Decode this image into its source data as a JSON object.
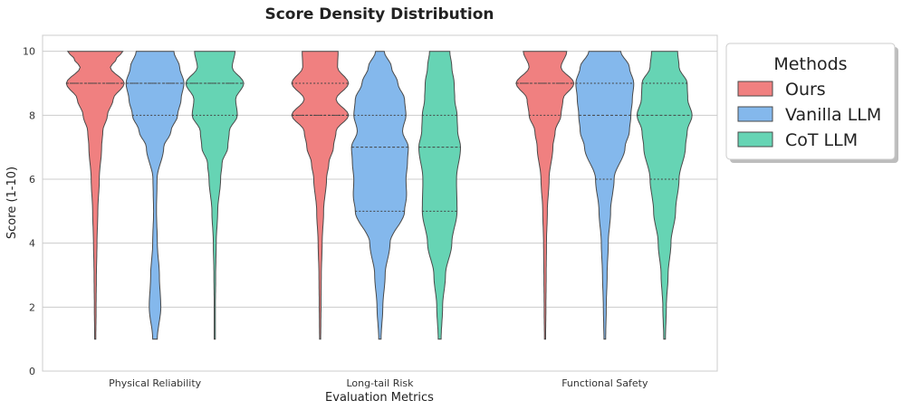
{
  "chart_data": {
    "type": "violin",
    "title": "Score Density Distribution",
    "xlabel": "Evaluation Metrics",
    "ylabel": "Score (1-10)",
    "ylim": [
      0,
      10.5
    ],
    "yticks": [
      0,
      2,
      4,
      6,
      8,
      10
    ],
    "categories": [
      "Physical Reliability",
      "Long-tail Risk",
      "Functional Safety"
    ],
    "legend": {
      "title": "Methods",
      "position": "outside-top-right"
    },
    "series": [
      {
        "name": "Ours",
        "color": "#f08080",
        "violins": [
          {
            "range": [
              1,
              10
            ],
            "quartiles": [
              9,
              9,
              9
            ],
            "profile": [
              [
                1,
                0.02
              ],
              [
                2,
                0.03
              ],
              [
                3,
                0.04
              ],
              [
                4,
                0.06
              ],
              [
                5,
                0.09
              ],
              [
                6,
                0.14
              ],
              [
                7,
                0.22
              ],
              [
                7.5,
                0.26
              ],
              [
                8,
                0.42
              ],
              [
                8.5,
                0.62
              ],
              [
                9,
                1.0
              ],
              [
                9.5,
                0.52
              ],
              [
                9.75,
                0.72
              ],
              [
                10,
                0.95
              ]
            ]
          },
          {
            "range": [
              1,
              10
            ],
            "quartiles": [
              8,
              8,
              9
            ],
            "profile": [
              [
                1,
                0.02
              ],
              [
                2,
                0.03
              ],
              [
                3,
                0.04
              ],
              [
                4,
                0.07
              ],
              [
                5,
                0.12
              ],
              [
                6,
                0.22
              ],
              [
                6.5,
                0.3
              ],
              [
                7,
                0.46
              ],
              [
                7.5,
                0.55
              ],
              [
                8,
                0.98
              ],
              [
                8.5,
                0.55
              ],
              [
                9,
                0.98
              ],
              [
                9.5,
                0.6
              ],
              [
                10,
                0.62
              ]
            ]
          },
          {
            "range": [
              1,
              10
            ],
            "quartiles": [
              8,
              9,
              9
            ],
            "profile": [
              [
                1,
                0.02
              ],
              [
                2,
                0.03
              ],
              [
                3,
                0.04
              ],
              [
                4,
                0.05
              ],
              [
                5,
                0.08
              ],
              [
                6,
                0.14
              ],
              [
                7,
                0.27
              ],
              [
                7.5,
                0.35
              ],
              [
                8,
                0.55
              ],
              [
                8.5,
                0.62
              ],
              [
                9,
                1.0
              ],
              [
                9.5,
                0.55
              ],
              [
                10,
                0.75
              ]
            ]
          }
        ]
      },
      {
        "name": "Vanilla LLM",
        "color": "#84b8ec",
        "violins": [
          {
            "range": [
              1,
              10
            ],
            "quartiles": [
              8,
              9,
              9
            ],
            "profile": [
              [
                1,
                0.08
              ],
              [
                2,
                0.2
              ],
              [
                3,
                0.15
              ],
              [
                4,
                0.08
              ],
              [
                5,
                0.05
              ],
              [
                6,
                0.07
              ],
              [
                7,
                0.3
              ],
              [
                7.5,
                0.55
              ],
              [
                8,
                0.78
              ],
              [
                8.5,
                0.9
              ],
              [
                9,
                1.0
              ],
              [
                9.5,
                0.85
              ],
              [
                10,
                0.65
              ]
            ]
          },
          {
            "range": [
              1,
              10
            ],
            "quartiles": [
              5,
              7,
              8
            ],
            "profile": [
              [
                1,
                0.04
              ],
              [
                2,
                0.1
              ],
              [
                3,
                0.18
              ],
              [
                4,
                0.35
              ],
              [
                5,
                0.85
              ],
              [
                5.5,
                0.92
              ],
              [
                6,
                0.9
              ],
              [
                6.5,
                0.95
              ],
              [
                7,
                0.98
              ],
              [
                7.5,
                0.78
              ],
              [
                8,
                0.9
              ],
              [
                8.5,
                0.85
              ],
              [
                9,
                0.62
              ],
              [
                9.5,
                0.4
              ],
              [
                10,
                0.15
              ]
            ]
          },
          {
            "range": [
              1,
              10
            ],
            "quartiles": [
              6,
              8,
              9
            ],
            "profile": [
              [
                1,
                0.03
              ],
              [
                2,
                0.05
              ],
              [
                3,
                0.08
              ],
              [
                4,
                0.12
              ],
              [
                5,
                0.2
              ],
              [
                6,
                0.32
              ],
              [
                7,
                0.7
              ],
              [
                7.5,
                0.85
              ],
              [
                8,
                0.9
              ],
              [
                8.5,
                0.95
              ],
              [
                9,
                1.0
              ],
              [
                9.5,
                0.85
              ],
              [
                10,
                0.55
              ]
            ]
          }
        ]
      },
      {
        "name": "CoT LLM",
        "color": "#66d4b4",
        "violins": [
          {
            "range": [
              1,
              10
            ],
            "quartiles": [
              8,
              9,
              9
            ],
            "profile": [
              [
                1,
                0.02
              ],
              [
                2,
                0.02
              ],
              [
                3,
                0.03
              ],
              [
                4,
                0.05
              ],
              [
                5,
                0.1
              ],
              [
                6,
                0.2
              ],
              [
                6.5,
                0.25
              ],
              [
                7,
                0.45
              ],
              [
                7.5,
                0.5
              ],
              [
                8,
                0.78
              ],
              [
                8.5,
                0.72
              ],
              [
                9,
                1.0
              ],
              [
                9.5,
                0.6
              ],
              [
                10,
                0.7
              ]
            ]
          },
          {
            "range": [
              1,
              10
            ],
            "quartiles": [
              5,
              7,
              8
            ],
            "profile": [
              [
                1,
                0.05
              ],
              [
                2,
                0.1
              ],
              [
                3,
                0.2
              ],
              [
                4,
                0.42
              ],
              [
                5,
                0.6
              ],
              [
                6,
                0.58
              ],
              [
                7,
                0.72
              ],
              [
                7.5,
                0.62
              ],
              [
                8,
                0.6
              ],
              [
                8.5,
                0.52
              ],
              [
                9,
                0.5
              ],
              [
                9.5,
                0.42
              ],
              [
                10,
                0.35
              ]
            ]
          },
          {
            "range": [
              1,
              10
            ],
            "quartiles": [
              6,
              8,
              9
            ],
            "profile": [
              [
                1,
                0.03
              ],
              [
                2,
                0.06
              ],
              [
                3,
                0.12
              ],
              [
                4,
                0.22
              ],
              [
                5,
                0.38
              ],
              [
                6,
                0.5
              ],
              [
                7,
                0.72
              ],
              [
                7.5,
                0.78
              ],
              [
                8,
                0.95
              ],
              [
                8.5,
                0.8
              ],
              [
                9,
                0.78
              ],
              [
                9.5,
                0.5
              ],
              [
                10,
                0.45
              ]
            ]
          }
        ]
      }
    ]
  }
}
